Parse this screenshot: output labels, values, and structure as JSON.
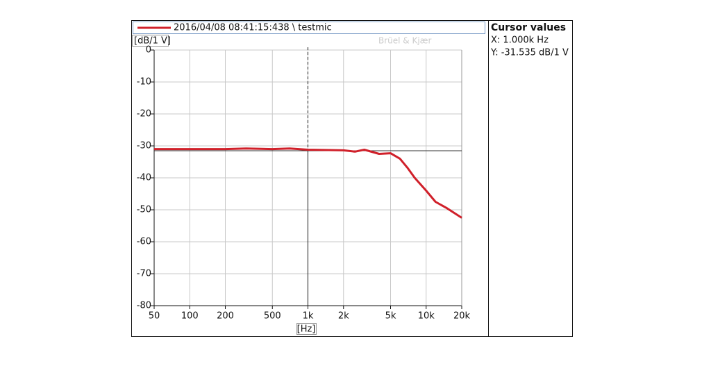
{
  "chart_data": {
    "type": "line",
    "y_label": "[dB/1 V]",
    "x_label": "[Hz]",
    "watermark": "Brüel & Kjær",
    "xscale": "log",
    "grid": true,
    "xlim": [
      50,
      20000
    ],
    "xticks": [
      50,
      100,
      200,
      500,
      {
        "value": 1000,
        "label": "1k"
      },
      {
        "value": 2000,
        "label": "2k"
      },
      {
        "value": 5000,
        "label": "5k"
      },
      {
        "value": 10000,
        "label": "10k"
      },
      {
        "value": 20000,
        "label": "20k"
      }
    ],
    "ylim": [
      -80,
      0
    ],
    "yticks": [
      0,
      -10,
      -20,
      -30,
      -40,
      -50,
      -60,
      -70,
      -80
    ],
    "series": [
      {
        "name": "2016/04/08 08:41:15:438 \\ testmic",
        "color": "#d0202a",
        "x": [
          50,
          100,
          200,
          300,
          500,
          700,
          1000,
          1500,
          2000,
          2500,
          3000,
          4000,
          5000,
          6000,
          7000,
          8000,
          10000,
          12000,
          15000,
          20000
        ],
        "values": [
          -31,
          -31,
          -31,
          -30.8,
          -31,
          -30.8,
          -31.2,
          -31.3,
          -31.4,
          -31.8,
          -31.2,
          -32.5,
          -32.3,
          -34,
          -37,
          -40,
          -44,
          -47.5,
          -49.5,
          -52.5
        ]
      }
    ],
    "cursor": {
      "x": 1000,
      "y": -31.535
    },
    "cursor_panel": {
      "title": "Cursor values",
      "x_text": "X: 1.000k Hz",
      "y_text": "Y: -31.535 dB/1 V"
    }
  }
}
